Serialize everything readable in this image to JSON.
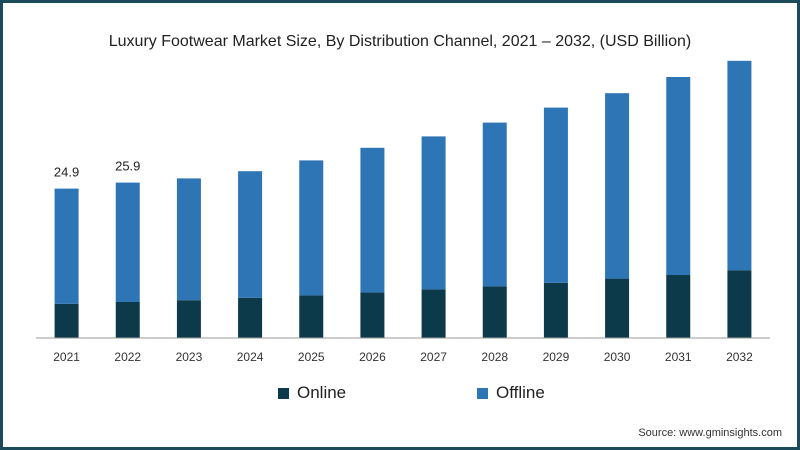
{
  "chart_data": {
    "type": "bar",
    "stacked": true,
    "title": "Luxury Footwear Market Size, By Distribution Channel, 2021 – 2032, (USD Billion)",
    "source": "Source: www.gminsights.com",
    "categories": [
      "2021",
      "2022",
      "2023",
      "2024",
      "2025",
      "2026",
      "2027",
      "2028",
      "2029",
      "2030",
      "2031",
      "2032"
    ],
    "series": [
      {
        "name": "Online",
        "color": "#0d3a4b",
        "values": [
          5.7,
          6.0,
          6.3,
          6.7,
          7.1,
          7.6,
          8.1,
          8.6,
          9.2,
          9.9,
          10.5,
          11.3
        ]
      },
      {
        "name": "Offline",
        "color": "#2e75b6",
        "values": [
          19.2,
          19.9,
          20.3,
          21.1,
          22.5,
          24.1,
          25.5,
          27.3,
          29.2,
          30.9,
          33.0,
          34.9
        ]
      }
    ],
    "data_labels": [
      {
        "category": "2021",
        "text": "24.9"
      },
      {
        "category": "2022",
        "text": "25.9"
      }
    ],
    "ylim": [
      0,
      50
    ],
    "legend_position": "bottom",
    "grid": false
  }
}
